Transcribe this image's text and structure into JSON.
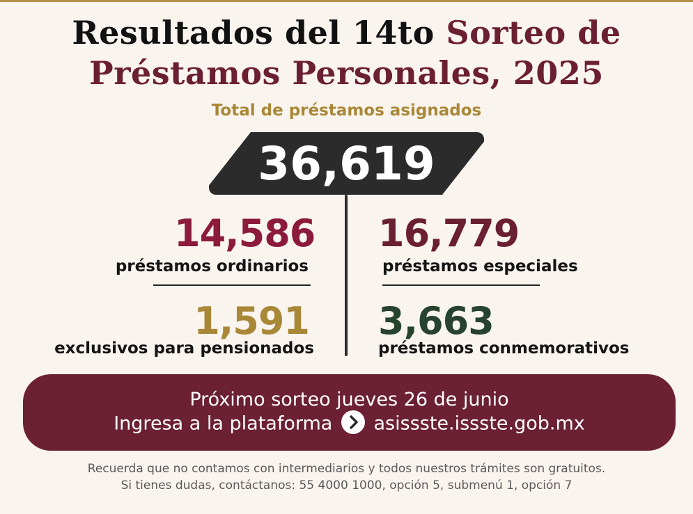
{
  "header": {
    "title_part1": "Resultados del 14to ",
    "title_part2": "Sorteo de",
    "title_line2": "Préstamos  Personales, 2025"
  },
  "total": {
    "label": "Total de préstamos asignados",
    "value": "36,619"
  },
  "stats": [
    {
      "value": "14,586",
      "label": "préstamos ordinarios",
      "color": "#8b1a3c"
    },
    {
      "value": "16,779",
      "label": "préstamos especiales",
      "color": "#6b1f33"
    },
    {
      "value": "1,591",
      "label": "exclusivos para pensionados",
      "color": "#a88737"
    },
    {
      "value": "3,663",
      "label": "préstamos conmemorativos",
      "color": "#27432f"
    }
  ],
  "banner": {
    "line1": "Próximo sorteo jueves 26 de junio",
    "line2_prefix": "Ingresa a la plataforma",
    "line2_url": "asissste.issste.gob.mx",
    "icon": "chevron-right-icon"
  },
  "footer": {
    "line1": "Recuerda que no contamos con intermediarios y todos nuestros trámites son gratuitos.",
    "line2": "Si tienes dudas, contáctanos: 55 4000 1000,  opción 5, submenú 1, opción 7"
  }
}
